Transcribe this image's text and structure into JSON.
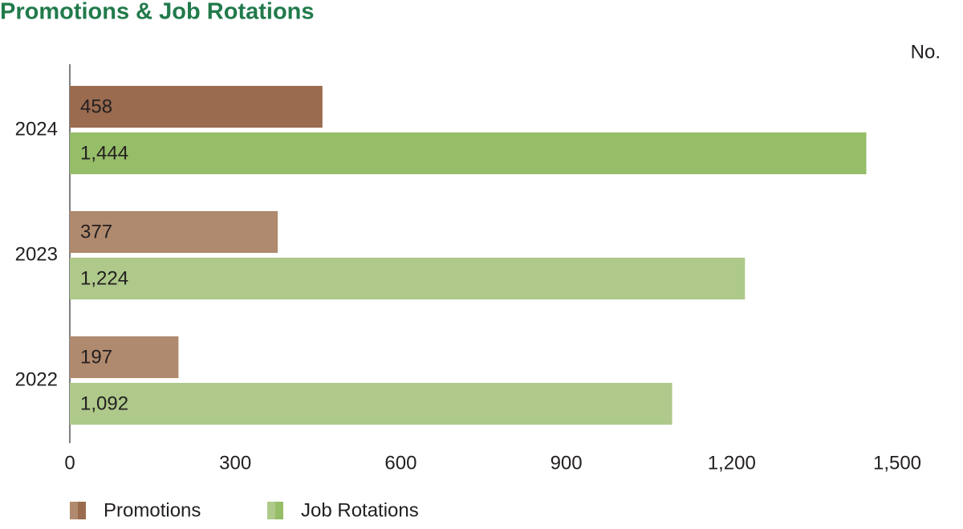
{
  "chart_data": {
    "type": "hbar",
    "title": "Promotions & Job Rotations",
    "unit_label": "No.",
    "categories": [
      "2024",
      "2023",
      "2022"
    ],
    "series": [
      {
        "name": "Promotions",
        "colors": [
          "#9a6b4f",
          "#b08a6e",
          "#b08a6e"
        ],
        "values": [
          458,
          377,
          197
        ]
      },
      {
        "name": "Job Rotations",
        "colors": [
          "#96bd68",
          "#aec98a",
          "#aec98a"
        ],
        "values": [
          1444,
          1224,
          1092
        ],
        "value_labels": [
          "1,444",
          "1,224",
          "1,092"
        ]
      }
    ],
    "xlim": [
      0,
      1500
    ],
    "xticks": [
      0,
      300,
      600,
      900,
      {
        "value": 1200,
        "label": "1,200"
      },
      {
        "value": 1500,
        "label": "1,500"
      }
    ],
    "grid": false
  }
}
